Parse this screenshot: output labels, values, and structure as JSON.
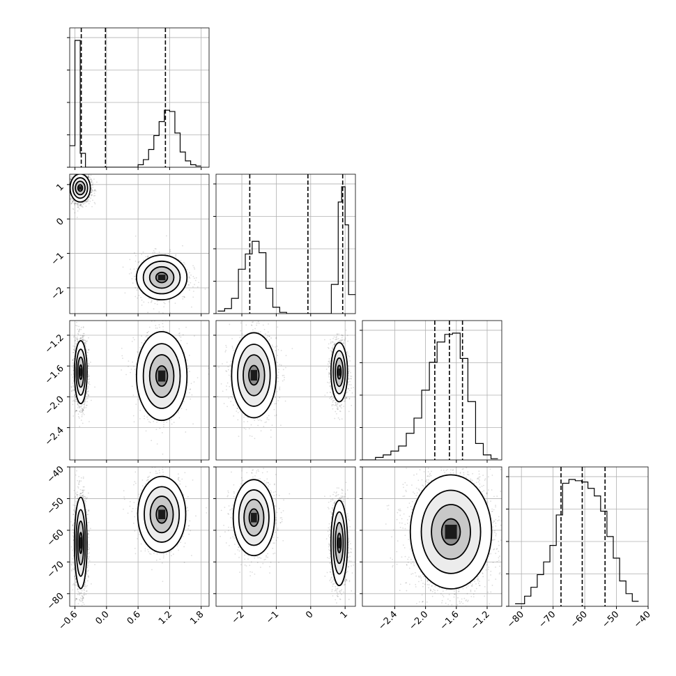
{
  "chart_data": {
    "type": "corner",
    "params": [
      {
        "range": [
          -0.7,
          1.95
        ],
        "ticks": [
          -0.6,
          0.0,
          0.6,
          1.2,
          1.8
        ],
        "tick_labels": [
          "−0.6",
          "0.0",
          "0.6",
          "1.2",
          "1.8"
        ],
        "quantile_lines": [
          -0.48,
          -0.02,
          1.12
        ]
      },
      {
        "range": [
          -2.75,
          1.3
        ],
        "ticks": [
          -2,
          -1,
          0,
          1
        ],
        "tick_labels": [
          "−2",
          "−1",
          "0",
          "1"
        ],
        "quantile_lines": [
          -1.77,
          -0.08,
          0.93
        ]
      },
      {
        "range": [
          -2.82,
          -1.01
        ],
        "ticks": [
          -2.4,
          -2.0,
          -1.6,
          -1.2
        ],
        "tick_labels": [
          "−2.4",
          "−2.0",
          "−1.6",
          "−1.2"
        ],
        "quantile_lines": [
          -1.88,
          -1.69,
          -1.52
        ]
      },
      {
        "range": [
          -84,
          -40
        ],
        "ticks": [
          -80,
          -70,
          -60,
          -50,
          -40
        ],
        "tick_labels": [
          "−80",
          "−70",
          "−60",
          "−50",
          "−40"
        ],
        "quantile_lines": [
          -67.5,
          -60.8,
          -53.6
        ]
      }
    ],
    "histograms": [
      {
        "param": 0,
        "bin_edges": [
          -0.7,
          -0.6,
          -0.5,
          -0.4,
          -0.3,
          -0.2,
          0.1,
          0.6,
          0.7,
          0.8,
          0.9,
          1.0,
          1.1,
          1.2,
          1.3,
          1.4,
          1.5,
          1.6,
          1.7,
          1.8
        ],
        "counts": [
          0.17,
          1.0,
          0.11,
          0.0,
          0.0,
          0.0,
          0.0,
          0.02,
          0.06,
          0.14,
          0.25,
          0.36,
          0.45,
          0.44,
          0.27,
          0.12,
          0.05,
          0.02,
          0.01
        ]
      },
      {
        "param": 1,
        "bin_edges": [
          -2.7,
          -2.5,
          -2.3,
          -2.1,
          -1.9,
          -1.7,
          -1.5,
          -1.3,
          -1.1,
          -0.9,
          -0.7,
          0.4,
          0.6,
          0.8,
          0.9,
          1.0,
          1.1,
          1.3
        ],
        "counts": [
          0.02,
          0.04,
          0.12,
          0.35,
          0.47,
          0.57,
          0.48,
          0.2,
          0.05,
          0.01,
          0.0,
          0.0,
          0.23,
          0.88,
          1.0,
          0.7,
          0.15
        ]
      },
      {
        "param": 2,
        "bin_edges": [
          -2.82,
          -2.65,
          -2.55,
          -2.45,
          -2.35,
          -2.25,
          -2.15,
          -2.05,
          -1.95,
          -1.85,
          -1.75,
          -1.65,
          -1.55,
          -1.45,
          -1.35,
          -1.25,
          -1.15,
          -1.06
        ],
        "counts": [
          0.0,
          0.02,
          0.04,
          0.07,
          0.11,
          0.21,
          0.33,
          0.55,
          0.77,
          0.93,
          0.99,
          1.0,
          0.8,
          0.46,
          0.13,
          0.04,
          0.01
        ]
      },
      {
        "param": 3,
        "bin_edges": [
          -82,
          -79,
          -77,
          -75,
          -73,
          -71,
          -69,
          -67,
          -65,
          -63,
          -61,
          -59,
          -57,
          -55,
          -53,
          -51,
          -49,
          -47,
          -45,
          -43
        ],
        "counts": [
          0.02,
          0.08,
          0.15,
          0.25,
          0.35,
          0.48,
          0.72,
          0.97,
          1.0,
          0.99,
          0.98,
          0.93,
          0.87,
          0.75,
          0.55,
          0.38,
          0.2,
          0.1,
          0.04
        ]
      }
    ],
    "joint": [
      {
        "row": 1,
        "col": 0,
        "modes": [
          {
            "cx": -0.5,
            "cy": 0.9,
            "sx": 0.08,
            "sy": 0.17,
            "w": 0.7
          },
          {
            "cx": 1.05,
            "cy": -1.7,
            "sx": 0.2,
            "sy": 0.27,
            "w": 0.3
          }
        ]
      },
      {
        "row": 2,
        "col": 0,
        "modes": [
          {
            "cx": -0.49,
            "cy": -1.68,
            "sx": 0.05,
            "sy": 0.17,
            "w": 0.7
          },
          {
            "cx": 1.05,
            "cy": -1.73,
            "sx": 0.2,
            "sy": 0.24,
            "w": 0.3
          }
        ]
      },
      {
        "row": 2,
        "col": 1,
        "modes": [
          {
            "cx": -1.65,
            "cy": -1.72,
            "sx": 0.27,
            "sy": 0.23,
            "w": 0.4
          },
          {
            "cx": 0.83,
            "cy": -1.68,
            "sx": 0.1,
            "sy": 0.16,
            "w": 0.6
          }
        ]
      },
      {
        "row": 3,
        "col": 0,
        "modes": [
          {
            "cx": -0.49,
            "cy": -64.0,
            "sx": 0.05,
            "sy": 6.0,
            "w": 0.7
          },
          {
            "cx": 1.05,
            "cy": -55.0,
            "sx": 0.19,
            "sy": 5.0,
            "w": 0.3
          }
        ]
      },
      {
        "row": 3,
        "col": 1,
        "modes": [
          {
            "cx": -1.65,
            "cy": -56.0,
            "sx": 0.25,
            "sy": 5.0,
            "w": 0.4
          },
          {
            "cx": 0.83,
            "cy": -64.0,
            "sx": 0.1,
            "sy": 5.6,
            "w": 0.6
          }
        ]
      },
      {
        "row": 3,
        "col": 2,
        "modes": [
          {
            "cx": -1.67,
            "cy": -60.5,
            "sx": 0.22,
            "sy": 7.5,
            "w": 1.0
          }
        ]
      }
    ],
    "xlabel": "",
    "ylabel": "",
    "grid": true
  }
}
